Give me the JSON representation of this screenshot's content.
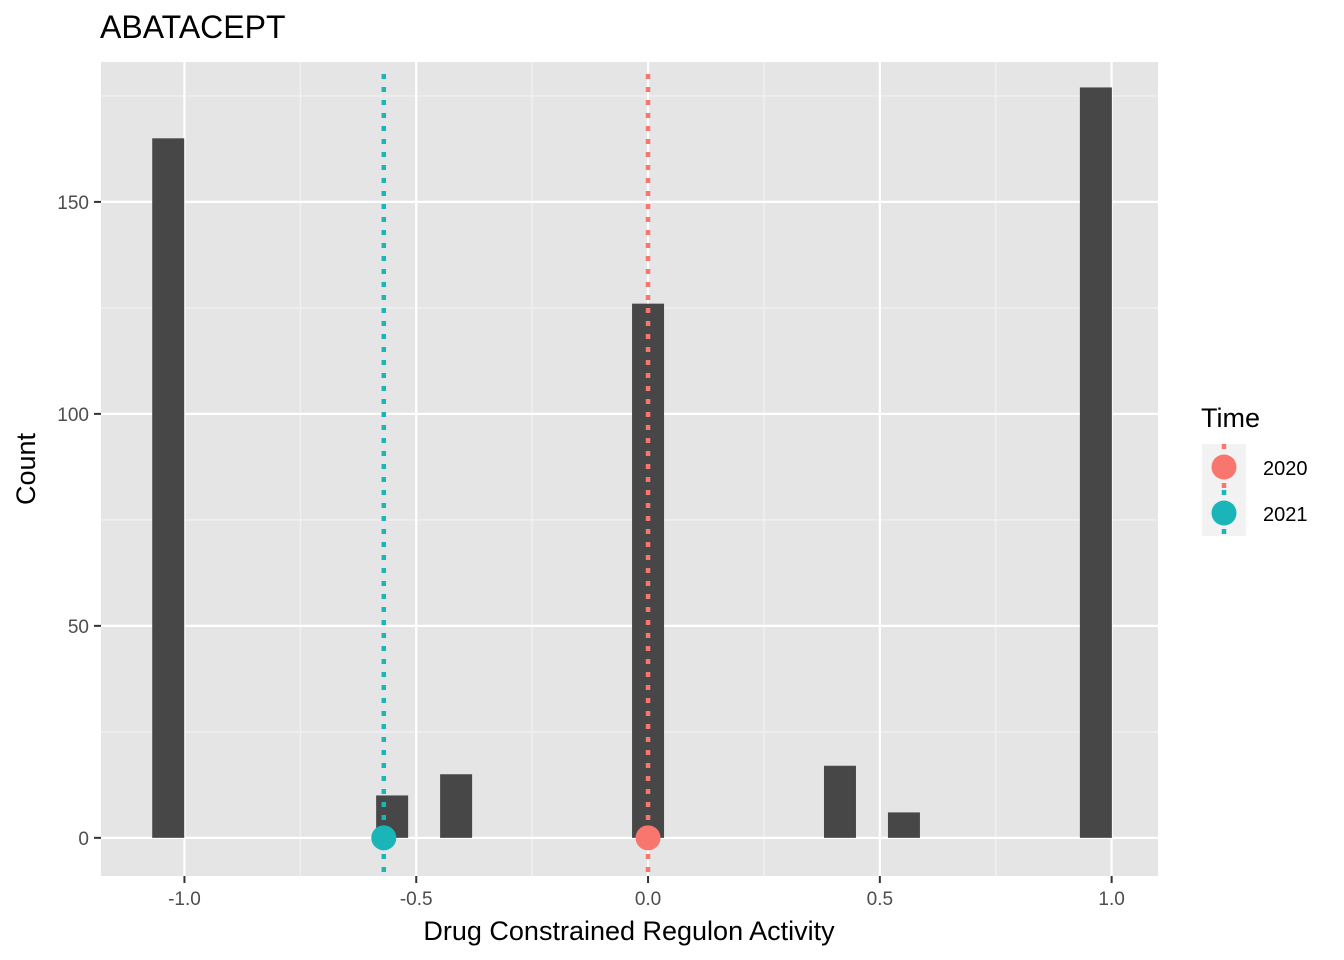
{
  "chart_data": {
    "type": "bar",
    "title": "ABATACEPT",
    "xlabel": "Drug Constrained Regulon Activity",
    "ylabel": "Count",
    "xlim": [
      -1.18,
      1.1
    ],
    "ylim": [
      -9,
      183
    ],
    "x_ticks": [
      {
        "value": -1.0,
        "label": "-1.0"
      },
      {
        "value": -0.5,
        "label": "-0.5"
      },
      {
        "value": 0.0,
        "label": "0.0"
      },
      {
        "value": 0.5,
        "label": "0.5"
      },
      {
        "value": 1.0,
        "label": "1.0"
      }
    ],
    "y_ticks": [
      {
        "value": 0,
        "label": "0"
      },
      {
        "value": 50,
        "label": "50"
      },
      {
        "value": 100,
        "label": "100"
      },
      {
        "value": 150,
        "label": "150"
      }
    ],
    "x_minor": [
      -0.75,
      -0.25,
      0.25,
      0.75
    ],
    "y_minor": [
      25,
      75,
      125,
      175
    ],
    "bin_width": 0.069,
    "bars": [
      {
        "x": -1.035,
        "count": 165
      },
      {
        "x": -0.552,
        "count": 10
      },
      {
        "x": -0.414,
        "count": 15
      },
      {
        "x": 0.0,
        "count": 126
      },
      {
        "x": 0.414,
        "count": 17
      },
      {
        "x": 0.552,
        "count": 6
      },
      {
        "x": 0.966,
        "count": 177
      }
    ],
    "bar_color": "#474747",
    "panel_color": "#e5e5e5",
    "grid": true,
    "markers": [
      {
        "name": "2020",
        "x": 0.0,
        "y": 0,
        "color": "#f8766d"
      },
      {
        "name": "2021",
        "x": -0.57,
        "y": 0,
        "color": "#19b5b9"
      }
    ],
    "legend": {
      "title": "Time",
      "placement": "right",
      "entries": [
        "2020",
        "2021"
      ]
    }
  }
}
